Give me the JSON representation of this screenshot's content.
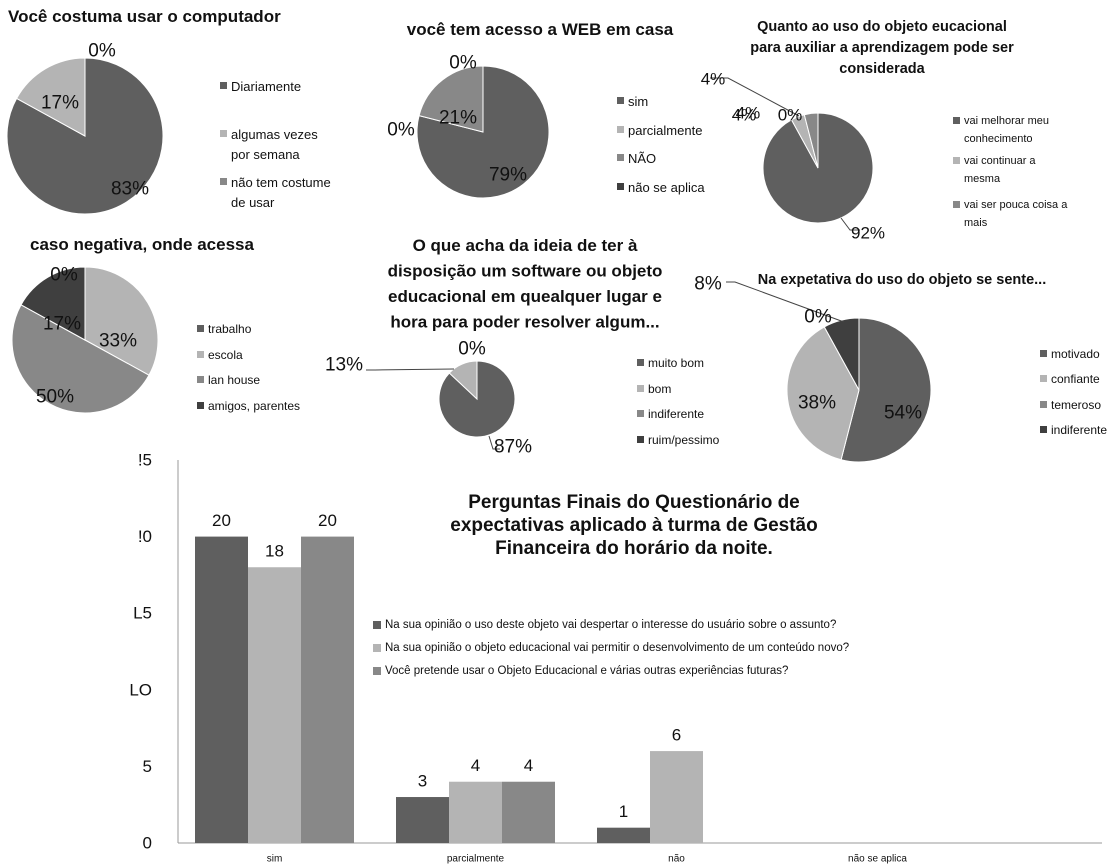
{
  "colors": {
    "dark": "#5f5f5f",
    "light": "#b4b4b4",
    "mid": "#888888",
    "darkest": "#3f3f3f"
  },
  "chart_data": [
    {
      "id": "computer",
      "type": "pie",
      "title": "Você costuma usar o computador",
      "slices": [
        {
          "label": "Diariamente",
          "value": 83,
          "data_label": "83%",
          "color": "#5f5f5f"
        },
        {
          "label": "algumas vezes por semana",
          "value": 17,
          "data_label": "17%",
          "color": "#b4b4b4"
        },
        {
          "label": "não tem costume de usar",
          "value": 0,
          "data_label": "0%",
          "color": "#888888"
        }
      ],
      "legend_lines": [
        [
          "Diariamente"
        ],
        [
          "algumas vezes",
          "por semana"
        ],
        [
          "não tem costume",
          "de usar"
        ]
      ],
      "legend_placement": "right"
    },
    {
      "id": "web",
      "type": "pie",
      "title": "você tem acesso a WEB em casa",
      "slices": [
        {
          "label": "sim",
          "value": 79,
          "data_label": "79%",
          "color": "#5f5f5f"
        },
        {
          "label": "parcialmente",
          "value": 0,
          "data_label": "0%",
          "color": "#b4b4b4"
        },
        {
          "label": "NÃO",
          "value": 21,
          "data_label": "21%",
          "color": "#888888"
        },
        {
          "label": "não se aplica",
          "value": 0,
          "data_label": "0%",
          "color": "#3f3f3f"
        }
      ],
      "legend_lines": [
        [
          "sim"
        ],
        [
          "parcialmente"
        ],
        [
          "NÃO"
        ],
        [
          "não se aplica"
        ]
      ],
      "legend_placement": "right"
    },
    {
      "id": "objeto",
      "type": "pie",
      "title": "Quanto ao uso do objeto eucacional para auxiliar a aprendizagem pode ser considerada",
      "title_lines": [
        "Quanto ao uso do objeto eucacional",
        "para auxiliar a aprendizagem pode ser",
        "considerada"
      ],
      "slices": [
        {
          "label": "vai melhorar meu conhecimento",
          "value": 92,
          "data_label": "92%",
          "color": "#5f5f5f"
        },
        {
          "label": "vai continuar a mesma",
          "value": 4,
          "data_label": "4%",
          "color": "#b4b4b4"
        },
        {
          "label": "vai ser pouca coisa a mais",
          "value": 4,
          "data_label": "4%",
          "color": "#888888"
        },
        {
          "label": "",
          "value": 0,
          "data_label": "0%",
          "color": "#3f3f3f"
        }
      ],
      "legend_lines": [
        [
          "vai melhorar meu",
          "conhecimento"
        ],
        [
          "vai continuar a",
          "mesma"
        ],
        [
          "vai ser pouca coisa a",
          "mais"
        ]
      ],
      "legend_placement": "right"
    },
    {
      "id": "onde",
      "type": "pie",
      "title": "caso negativa, onde acessa",
      "slices": [
        {
          "label": "trabalho",
          "value": 0,
          "data_label": "0%",
          "color": "#5f5f5f"
        },
        {
          "label": "escola",
          "value": 33,
          "data_label": "33%",
          "color": "#b4b4b4"
        },
        {
          "label": "lan house",
          "value": 50,
          "data_label": "50%",
          "color": "#888888"
        },
        {
          "label": "amigos, parentes",
          "value": 17,
          "data_label": "17%",
          "color": "#3f3f3f"
        }
      ],
      "legend_lines": [
        [
          "trabalho"
        ],
        [
          "escola"
        ],
        [
          "lan house"
        ],
        [
          "amigos, parentes"
        ]
      ],
      "legend_placement": "right"
    },
    {
      "id": "software",
      "type": "pie",
      "title": "O que acha da ideia de ter à disposição um software ou objeto educacional em quealquer lugar e hora para poder resolver algum...",
      "title_lines": [
        "O que acha da ideia de ter à",
        "disposição um software ou objeto",
        "educacional em quealquer lugar e",
        "hora para poder resolver algum..."
      ],
      "slices": [
        {
          "label": "muito bom",
          "value": 87,
          "data_label": "87%",
          "color": "#5f5f5f"
        },
        {
          "label": "bom",
          "value": 13,
          "data_label": "13%",
          "color": "#b4b4b4"
        },
        {
          "label": "indiferente",
          "value": 0,
          "data_label": "0%",
          "color": "#888888"
        },
        {
          "label": "ruim/pessimo",
          "value": 0,
          "data_label": "",
          "color": "#3f3f3f"
        }
      ],
      "legend_lines": [
        [
          "muito bom"
        ],
        [
          "bom"
        ],
        [
          "indiferente"
        ],
        [
          "ruim/pessimo"
        ]
      ],
      "legend_placement": "right"
    },
    {
      "id": "expectativa",
      "type": "pie",
      "title": "Na expetativa do uso do objeto se sente...",
      "slices": [
        {
          "label": "motivado",
          "value": 54,
          "data_label": "54%",
          "color": "#5f5f5f"
        },
        {
          "label": "confiante",
          "value": 38,
          "data_label": "38%",
          "color": "#b4b4b4"
        },
        {
          "label": "temeroso",
          "value": 0,
          "data_label": "0%",
          "color": "#888888"
        },
        {
          "label": "indiferente",
          "value": 8,
          "data_label": "8%",
          "color": "#3f3f3f"
        }
      ],
      "legend_lines": [
        [
          "motivado"
        ],
        [
          "confiante"
        ],
        [
          "temeroso"
        ],
        [
          "indiferente"
        ]
      ],
      "legend_placement": "right"
    },
    {
      "id": "finais",
      "type": "bar",
      "title": "Perguntas Finais do Questionário de expectativas aplicado à turma de Gestão Financeira do horário da noite.",
      "title_lines": [
        "Perguntas Finais do Questionário de",
        "expectativas aplicado à turma de Gestão",
        "Financeira do horário da noite."
      ],
      "categories": [
        "sim",
        "parcialmente",
        "não",
        "não se aplica"
      ],
      "series": [
        {
          "name": "Na sua opinião o uso deste objeto vai despertar o interesse do usuário sobre o assunto?",
          "values": [
            20,
            3,
            1,
            0
          ],
          "color": "#5f5f5f"
        },
        {
          "name": "Na sua opinião o objeto educacional vai permitir o desenvolvimento de um conteúdo novo?",
          "values": [
            18,
            4,
            6,
            0
          ],
          "color": "#b4b4b4"
        },
        {
          "name": "Você pretende usar o Objeto Educacional e várias outras experiências futuras?",
          "values": [
            20,
            4,
            0,
            0
          ],
          "color": "#888888"
        }
      ],
      "data_labels": [
        [
          "20",
          "3",
          "1",
          ""
        ],
        [
          "18",
          "4",
          "6",
          ""
        ],
        [
          "20",
          "4",
          "",
          ""
        ]
      ],
      "y_ticks": [
        "0",
        "5",
        "10",
        "15",
        "20",
        "25"
      ],
      "y_tick_labels": [
        "0",
        "5",
        "LO",
        "L5",
        "!0",
        "!5"
      ],
      "ylim": [
        0,
        25
      ],
      "grid": false,
      "legend_placement": "center-right"
    }
  ]
}
